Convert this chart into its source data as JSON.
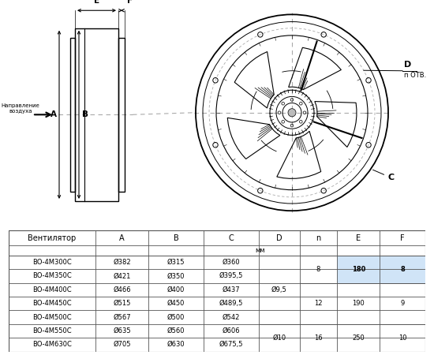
{
  "bg_color": "#ffffff",
  "line_color": "#000000",
  "dash_color": "#aaaaaa",
  "label_dir": "Направление\nвоздуха",
  "label_n_otv": "п ОТВ.",
  "table_headers": [
    "Вентилятор",
    "A",
    "B",
    "C",
    "D",
    "n",
    "E",
    "F"
  ],
  "row_labels": [
    "ВО-4М300С",
    "ВО-4М350С",
    "ВО-4М400С",
    "ВО-4М450С",
    "ВО-4М500С",
    "ВО-4М550С",
    "ВО-4М630С"
  ],
  "col_A": [
    "Ø382",
    "Ø421",
    "Ø466",
    "Ø515",
    "Ø567",
    "Ø635",
    "Ø705"
  ],
  "col_B": [
    "Ø315",
    "Ø350",
    "Ø400",
    "Ø450",
    "Ø500",
    "Ø560",
    "Ø630"
  ],
  "col_C": [
    "Ø360",
    "Ø395,5",
    "Ø437",
    "Ø489,5",
    "Ø542",
    "Ø606",
    "Ø675,5"
  ],
  "highlight_row": 0
}
